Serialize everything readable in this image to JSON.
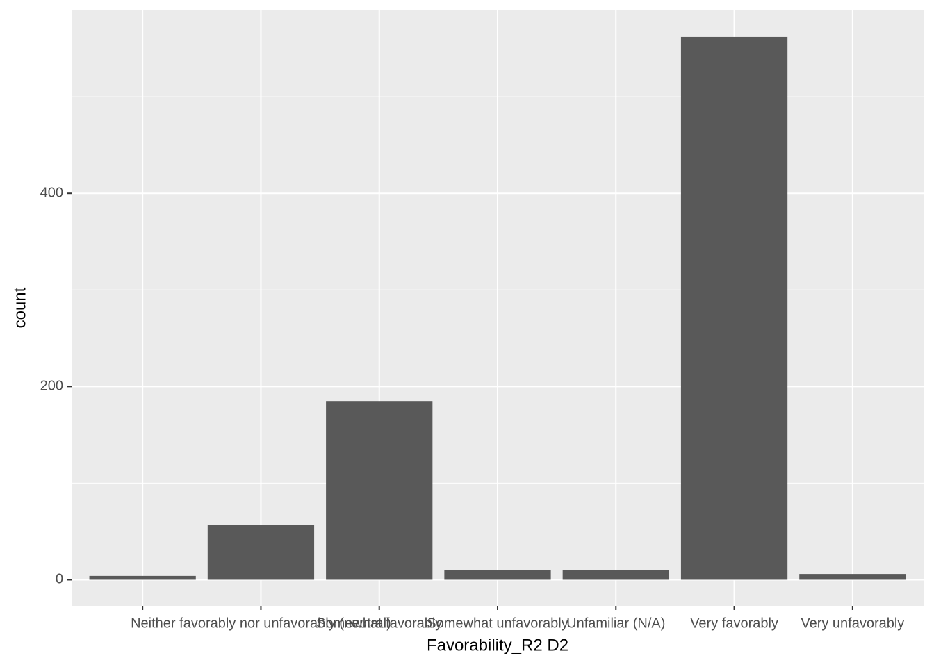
{
  "chart_data": {
    "type": "bar",
    "xlabel": "Favorability_R2 D2",
    "ylabel": "count",
    "categories": [
      null,
      "Neither favorably nor unfavorably (neutral)",
      "Somewhat favorably",
      "Somewhat unfavorably",
      "Unfamiliar (N/A)",
      "Very favorably",
      "Very unfavorably"
    ],
    "values": [
      4,
      57,
      185,
      10,
      10,
      562,
      6
    ],
    "color": "#595959",
    "ylim": [
      -27,
      590
    ],
    "yticks": [
      0,
      200,
      400
    ],
    "minor_yticks": [
      100,
      300,
      500
    ],
    "grid": true
  }
}
